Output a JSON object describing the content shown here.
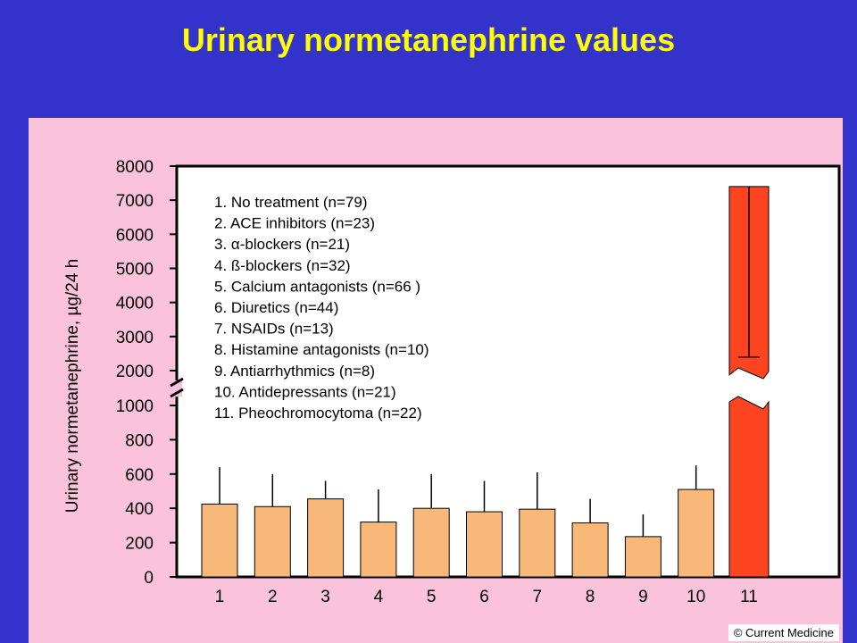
{
  "slide": {
    "title": "Urinary normetanephrine values",
    "credit": "© Current Medicine"
  },
  "colors": {
    "background": "#3333cc",
    "title": "#ffff00",
    "panel": "#fbc2dc",
    "bar": "#f8b87a",
    "bar_highlight": "#ff4422"
  },
  "chart_data": {
    "type": "bar",
    "title": "",
    "ylabel": "Urinary normetanephrine, µg/24 h",
    "xlabel": "",
    "categories": [
      "1",
      "2",
      "3",
      "4",
      "5",
      "6",
      "7",
      "8",
      "9",
      "10",
      "11"
    ],
    "values": [
      425,
      410,
      455,
      320,
      400,
      380,
      395,
      315,
      235,
      510,
      7400
    ],
    "error_upper": [
      640,
      600,
      560,
      510,
      600,
      560,
      610,
      455,
      365,
      650,
      null
    ],
    "error_lower": [
      null,
      null,
      null,
      null,
      null,
      null,
      null,
      null,
      null,
      null,
      2400
    ],
    "y_ticks": [
      "0",
      "200",
      "400",
      "600",
      "800",
      "1000",
      "2000",
      "3000",
      "4000",
      "5000",
      "6000",
      "7000",
      "8000"
    ],
    "y_axis_break": [
      1000,
      2000
    ],
    "ylim": [
      0,
      8000
    ],
    "grid": false,
    "legend_placement": "top-left",
    "legend": [
      "1. No treatment (n=79)",
      "2. ACE inhibitors (n=23)",
      "3. α-blockers (n=21)",
      "4. ß-blockers (n=32)",
      "5. Calcium antagonists (n=66 )",
      "6. Diuretics (n=44)",
      "7. NSAIDs (n=13)",
      "8. Histamine antagonists (n=10)",
      "9. Antiarrhythmics (n=8)",
      "10. Antidepressants (n=21)",
      "11. Pheochromocytoma (n=22)"
    ]
  }
}
